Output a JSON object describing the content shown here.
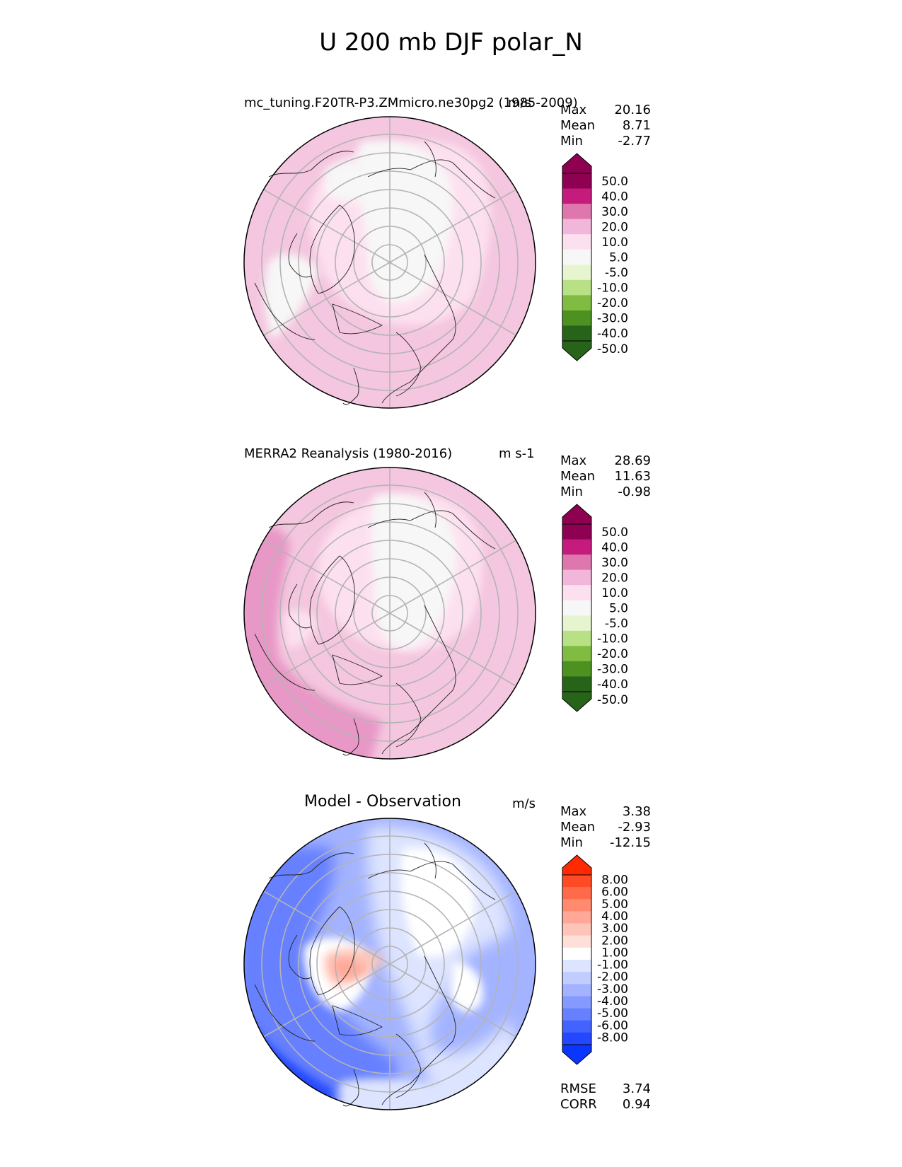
{
  "figure": {
    "title": "U 200 mb DJF polar_N"
  },
  "panels": [
    {
      "title": "mc_tuning.F20TR-P3.ZMmicro.ne30pg2 (1985-2009)",
      "units": "m/s",
      "stats": [
        {
          "label": "Max",
          "value": "20.16"
        },
        {
          "label": "Mean",
          "value": "8.71"
        },
        {
          "label": "Min",
          "value": "-2.77"
        }
      ],
      "colorbar": {
        "labels": [
          "50.0",
          "40.0",
          "30.0",
          "20.0",
          "10.0",
          "5.0",
          "-5.0",
          "-10.0",
          "-20.0",
          "-30.0",
          "-40.0",
          "-50.0"
        ],
        "colors": [
          "#8e0152",
          "#c51b7d",
          "#de77ae",
          "#f1b6da",
          "#fde0ef",
          "#f7f7f7",
          "#e6f5d0",
          "#b8e186",
          "#7fbc41",
          "#4d9221",
          "#276419"
        ],
        "extend_top": "#8e0152",
        "extend_bottom": "#276419"
      }
    },
    {
      "title": "MERRA2 Reanalysis (1980-2016)",
      "units": "m s-1",
      "stats": [
        {
          "label": "Max",
          "value": "28.69"
        },
        {
          "label": "Mean",
          "value": "11.63"
        },
        {
          "label": "Min",
          "value": "-0.98"
        }
      ],
      "colorbar": {
        "labels": [
          "50.0",
          "40.0",
          "30.0",
          "20.0",
          "10.0",
          "5.0",
          "-5.0",
          "-10.0",
          "-20.0",
          "-30.0",
          "-40.0",
          "-50.0"
        ],
        "colors": [
          "#8e0152",
          "#c51b7d",
          "#de77ae",
          "#f1b6da",
          "#fde0ef",
          "#f7f7f7",
          "#e6f5d0",
          "#b8e186",
          "#7fbc41",
          "#4d9221",
          "#276419"
        ],
        "extend_top": "#8e0152",
        "extend_bottom": "#276419"
      }
    },
    {
      "title": "Model - Observation",
      "units": "m/s",
      "stats": [
        {
          "label": "Max",
          "value": "3.38"
        },
        {
          "label": "Mean",
          "value": "-2.93"
        },
        {
          "label": "Min",
          "value": "-12.15"
        }
      ],
      "extra_stats": [
        {
          "label": "RMSE",
          "value": "3.74"
        },
        {
          "label": "CORR",
          "value": "0.94"
        }
      ],
      "colorbar": {
        "labels": [
          "8.00",
          "6.00",
          "5.00",
          "4.00",
          "3.00",
          "2.00",
          "1.00",
          "-1.00",
          "-2.00",
          "-3.00",
          "-4.00",
          "-5.00",
          "-6.00",
          "-8.00"
        ],
        "colors": [
          "#ff4a26",
          "#ff6b4a",
          "#ff8a70",
          "#ffa898",
          "#ffc4b8",
          "#ffe0d8",
          "#ffffff",
          "#dde4ff",
          "#c1cdff",
          "#a3b3ff",
          "#859aff",
          "#6680ff",
          "#4363ff",
          "#2448ff"
        ],
        "extend_top": "#ff2a00",
        "extend_bottom": "#0a36ff"
      }
    }
  ],
  "chart_data": [
    {
      "type": "polar-contour",
      "title": "mc_tuning.F20TR-P3.ZMmicro.ne30pg2 (1985-2009)",
      "units": "m/s",
      "max": 20.16,
      "mean": 8.71,
      "min": -2.77,
      "levels": [
        -50,
        -40,
        -30,
        -20,
        -10,
        -5,
        5,
        10,
        20,
        30,
        40,
        50
      ]
    },
    {
      "type": "polar-contour",
      "title": "MERRA2 Reanalysis (1980-2016)",
      "units": "m s-1",
      "max": 28.69,
      "mean": 11.63,
      "min": -0.98,
      "levels": [
        -50,
        -40,
        -30,
        -20,
        -10,
        -5,
        5,
        10,
        20,
        30,
        40,
        50
      ]
    },
    {
      "type": "polar-contour",
      "title": "Model - Observation",
      "units": "m/s",
      "max": 3.38,
      "mean": -2.93,
      "min": -12.15,
      "rmse": 3.74,
      "corr": 0.94,
      "levels": [
        -8,
        -6,
        -5,
        -4,
        -3,
        -2,
        -1,
        1,
        2,
        3,
        4,
        5,
        6,
        8
      ]
    }
  ]
}
